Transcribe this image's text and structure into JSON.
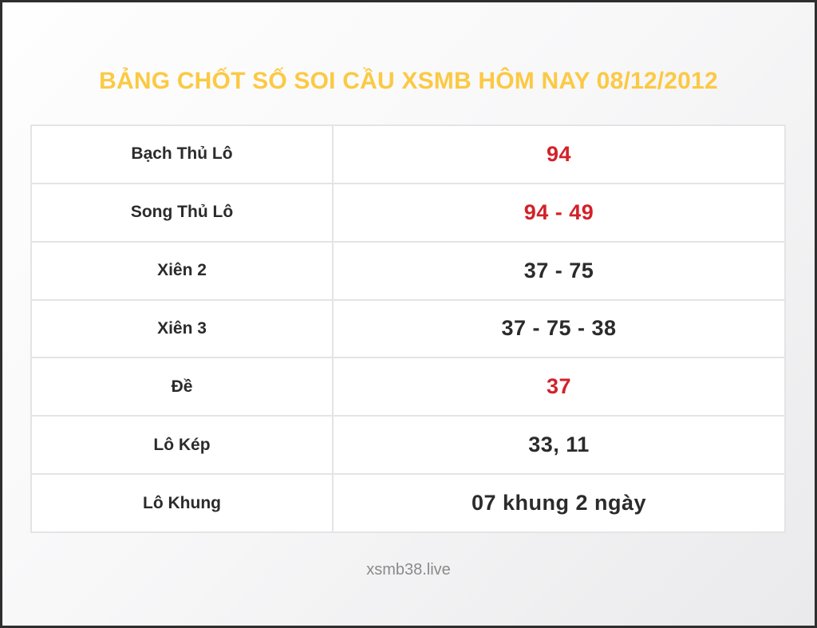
{
  "page": {
    "title": "BẢNG CHỐT SỐ SOI CẦU XSMB HÔM NAY 08/12/2012",
    "footer": "xsmb38.live"
  },
  "colors": {
    "title_gold": "#FBC943",
    "highlight_red": "#D1222A",
    "text_dark": "#2B2B2B",
    "cell_border": "#E4E4E4",
    "footer_gray": "#8A8A8A"
  },
  "table": {
    "rows": [
      {
        "label": "Bạch Thủ Lô",
        "value": "94",
        "highlight": true
      },
      {
        "label": "Song Thủ Lô",
        "value": "94 - 49",
        "highlight": true
      },
      {
        "label": "Xiên 2",
        "value": "37 - 75",
        "highlight": false
      },
      {
        "label": "Xiên 3",
        "value": "37 - 75 - 38",
        "highlight": false
      },
      {
        "label": "Đề",
        "value": "37",
        "highlight": true
      },
      {
        "label": "Lô Kép",
        "value": "33, 11",
        "highlight": false
      },
      {
        "label": "Lô Khung",
        "value": "07 khung 2 ngày",
        "highlight": false
      }
    ]
  },
  "chart_data": {
    "type": "table",
    "title": "BẢNG CHỐT SỐ SOI CẦU XSMB HÔM NAY 08/12/2012",
    "rows": [
      [
        "Bạch Thủ Lô",
        "94"
      ],
      [
        "Song Thủ Lô",
        "94 - 49"
      ],
      [
        "Xiên 2",
        "37 - 75"
      ],
      [
        "Xiên 3",
        "37 - 75 - 38"
      ],
      [
        "Đề",
        "37"
      ],
      [
        "Lô Kép",
        "33, 11"
      ],
      [
        "Lô Khung",
        "07 khung 2 ngày"
      ]
    ],
    "notes": "Red-highlighted values: Bạch Thủ Lô (94), Song Thủ Lô (94 - 49), Đề (37). Footer watermark: xsmb38.live"
  }
}
